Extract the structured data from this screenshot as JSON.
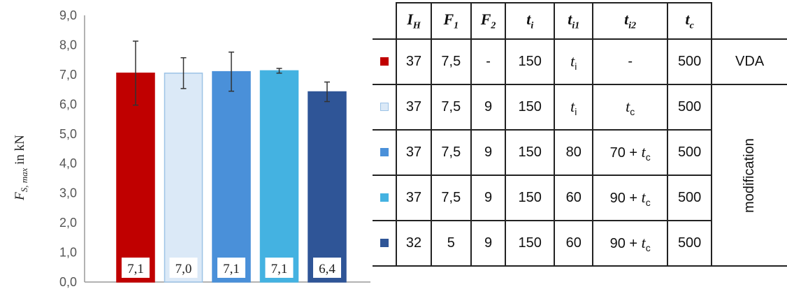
{
  "chart_data": {
    "type": "bar",
    "ylabel_main": "F",
    "ylabel_sub": "S, max",
    "ylabel_unit": " in kN",
    "ylim": [
      0,
      9
    ],
    "yticks": [
      "0,0",
      "1,0",
      "2,0",
      "3,0",
      "4,0",
      "5,0",
      "6,0",
      "7,0",
      "8,0",
      "9,0"
    ],
    "grid": false,
    "values": [
      7.05,
      7.05,
      7.1,
      7.13,
      6.42
    ],
    "errors": [
      1.08,
      0.52,
      0.66,
      0.08,
      0.33
    ],
    "labels": [
      "7,1",
      "7,0",
      "7,1",
      "7,1",
      "6,4"
    ],
    "colors": [
      "#c00000",
      "#dbe9f7",
      "#4a90d9",
      "#44b2e1",
      "#2f5597"
    ],
    "strokes": [
      "#c00000",
      "#9dc3e6",
      "#4a90d9",
      "#44b2e1",
      "#2f5597"
    ]
  },
  "table": {
    "headers": [
      {
        "main": "I",
        "sub": "H"
      },
      {
        "main": "F",
        "sub": "1"
      },
      {
        "main": "F",
        "sub": "2"
      },
      {
        "main": "t",
        "sub": "i"
      },
      {
        "main": "t",
        "sub": "i1"
      },
      {
        "main": "t",
        "sub": "i2"
      },
      {
        "main": "t",
        "sub": "c"
      }
    ],
    "rows": [
      {
        "color": "#c00000",
        "border": "#c00000",
        "ih": "37",
        "f1": "7,5",
        "f2": "-",
        "ti": "150",
        "ti1_sym": "t",
        "ti1_sub": "i",
        "ti2_pre": "-",
        "ti2_sym": "",
        "ti2_sub": "",
        "tc": "500"
      },
      {
        "color": "#dbe9f7",
        "border": "#9dc3e6",
        "ih": "37",
        "f1": "7,5",
        "f2": "9",
        "ti": "150",
        "ti1_sym": "t",
        "ti1_sub": "i",
        "ti2_pre": "",
        "ti2_sym": "t",
        "ti2_sub": "c",
        "tc": "500"
      },
      {
        "color": "#4a90d9",
        "border": "#4a90d9",
        "ih": "37",
        "f1": "7,5",
        "f2": "9",
        "ti": "150",
        "ti1_sym": "80",
        "ti1_sub": "",
        "ti2_pre": "70 + ",
        "ti2_sym": "t",
        "ti2_sub": "c",
        "tc": "500"
      },
      {
        "color": "#44b2e1",
        "border": "#44b2e1",
        "ih": "37",
        "f1": "7,5",
        "f2": "9",
        "ti": "150",
        "ti1_sym": "60",
        "ti1_sub": "",
        "ti2_pre": "90 + ",
        "ti2_sym": "t",
        "ti2_sub": "c",
        "tc": "500"
      },
      {
        "color": "#2f5597",
        "border": "#2f5597",
        "ih": "32",
        "f1": "5",
        "f2": "9",
        "ti": "150",
        "ti1_sym": "60",
        "ti1_sub": "",
        "ti2_pre": "90 + ",
        "ti2_sym": "t",
        "ti2_sub": "c",
        "tc": "500"
      }
    ],
    "group_vda": "VDA",
    "group_modification": "modification"
  }
}
